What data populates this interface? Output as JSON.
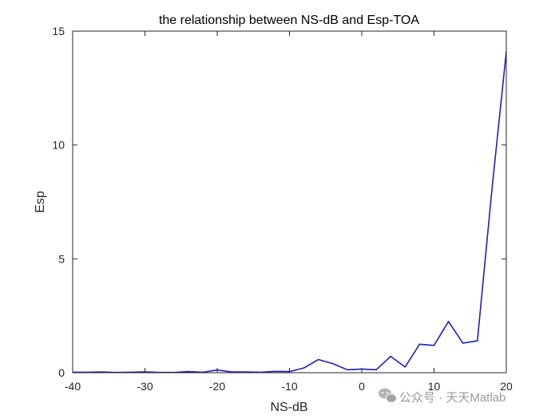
{
  "chart_data": {
    "type": "line",
    "title": "the relationship between NS-dB and Esp-TOA",
    "xlabel": "NS-dB",
    "ylabel": "Esp",
    "xlim": [
      -40,
      20
    ],
    "ylim": [
      0,
      15
    ],
    "xticks": [
      -40,
      -30,
      -20,
      -10,
      0,
      10,
      20
    ],
    "yticks": [
      0,
      5,
      10,
      15
    ],
    "grid": false,
    "line_color": "#1f1fbf",
    "x": [
      -40,
      -38,
      -36,
      -34,
      -32,
      -30,
      -28,
      -26,
      -24,
      -22,
      -20,
      -18,
      -16,
      -14,
      -12,
      -10,
      -8,
      -6,
      -4,
      -2,
      0,
      2,
      4,
      6,
      8,
      10,
      12,
      14,
      16,
      18,
      20
    ],
    "y": [
      0.02,
      0.02,
      0.03,
      0.01,
      0.02,
      0.04,
      0.01,
      0.01,
      0.05,
      0.02,
      0.12,
      0.03,
      0.03,
      0.02,
      0.06,
      0.05,
      0.21,
      0.58,
      0.4,
      0.13,
      0.16,
      0.13,
      0.72,
      0.25,
      1.25,
      1.2,
      2.25,
      1.3,
      1.4,
      8.0,
      14.1
    ]
  },
  "watermark": {
    "text": "公众号 · 天天Matlab",
    "icon": "wechat-icon"
  }
}
